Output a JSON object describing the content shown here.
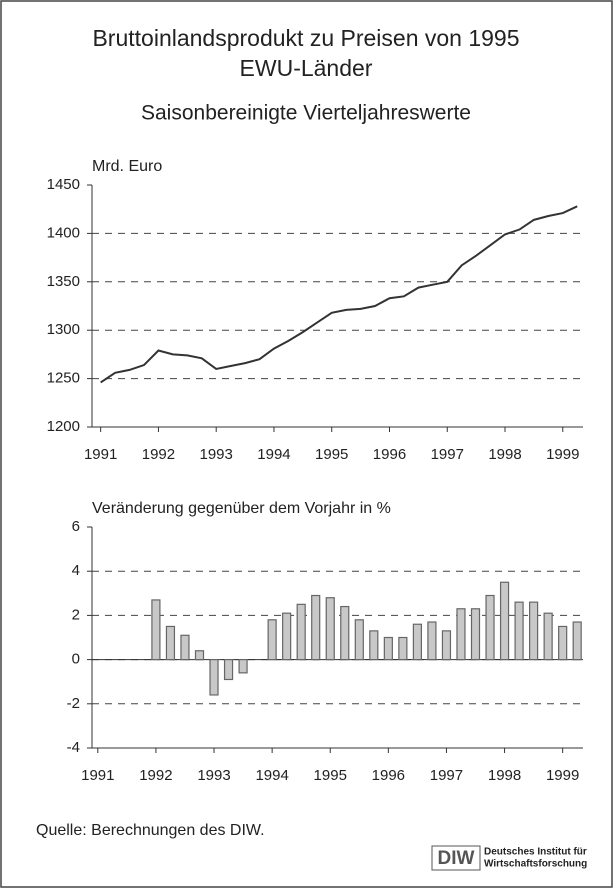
{
  "title": [
    "Bruttoinlandsprodukt zu Preisen von 1995",
    "EWU-Länder"
  ],
  "subtitle": "Saisonbereinigte Vierteljahreswerte",
  "chart_data": [
    {
      "type": "line",
      "ylabel": "Mrd. Euro",
      "color": "#333333",
      "x": [
        1991,
        1991.25,
        1991.5,
        1991.75,
        1992,
        1992.25,
        1992.5,
        1992.75,
        1993,
        1993.25,
        1993.5,
        1993.75,
        1994,
        1994.25,
        1994.5,
        1994.75,
        1995,
        1995.25,
        1995.5,
        1995.75,
        1996,
        1996.25,
        1996.5,
        1996.75,
        1997,
        1997.25,
        1997.5,
        1997.75,
        1998,
        1998.25,
        1998.5,
        1998.75,
        1999,
        1999.25
      ],
      "values": [
        1246,
        1256,
        1259,
        1264,
        1279,
        1275,
        1274,
        1271,
        1260,
        1263,
        1266,
        1270,
        1281,
        1289,
        1298,
        1308,
        1318,
        1321,
        1322,
        1325,
        1333,
        1335,
        1344,
        1347,
        1350,
        1367,
        1377,
        1388,
        1399,
        1404,
        1414,
        1418,
        1421,
        1428
      ],
      "xlim": [
        1990.85,
        1999.35
      ],
      "xticks": [
        1991,
        1992,
        1993,
        1994,
        1995,
        1996,
        1997,
        1998,
        1999
      ],
      "ylim": [
        1200,
        1450
      ],
      "yticks": [
        1200,
        1250,
        1300,
        1350,
        1400,
        1450
      ],
      "grid": true
    },
    {
      "type": "bar",
      "ylabel": "Veränderung gegenüber dem Vorjahr in %",
      "color": "#c8c8c8",
      "x": [
        1992,
        1992.25,
        1992.5,
        1992.75,
        1993,
        1993.25,
        1993.5,
        1993.75,
        1994,
        1994.25,
        1994.5,
        1994.75,
        1995,
        1995.25,
        1995.5,
        1995.75,
        1996,
        1996.25,
        1996.5,
        1996.75,
        1997,
        1997.25,
        1997.5,
        1997.75,
        1998,
        1998.25,
        1998.5,
        1998.75,
        1999,
        1999.25
      ],
      "values": [
        2.7,
        1.5,
        1.1,
        0.4,
        -1.6,
        -0.9,
        -0.6,
        0,
        1.8,
        2.1,
        2.5,
        2.9,
        2.8,
        2.4,
        1.8,
        1.3,
        1.0,
        1.0,
        1.6,
        1.7,
        1.3,
        2.3,
        2.3,
        2.9,
        3.5,
        2.6,
        2.6,
        2.1,
        1.5,
        1.7
      ],
      "xlim": [
        1990.9,
        1999.35
      ],
      "xticks": [
        1991,
        1992,
        1993,
        1994,
        1995,
        1996,
        1997,
        1998,
        1999
      ],
      "ylim": [
        -4,
        6
      ],
      "yticks": [
        -4,
        -2,
        0,
        2,
        4,
        6
      ],
      "grid": true
    }
  ],
  "source": "Quelle: Berechnungen des DIW.",
  "logo": {
    "mark": "DIW",
    "lines": [
      "Deutsches Institut für",
      "Wirtschaftsforschung"
    ]
  }
}
